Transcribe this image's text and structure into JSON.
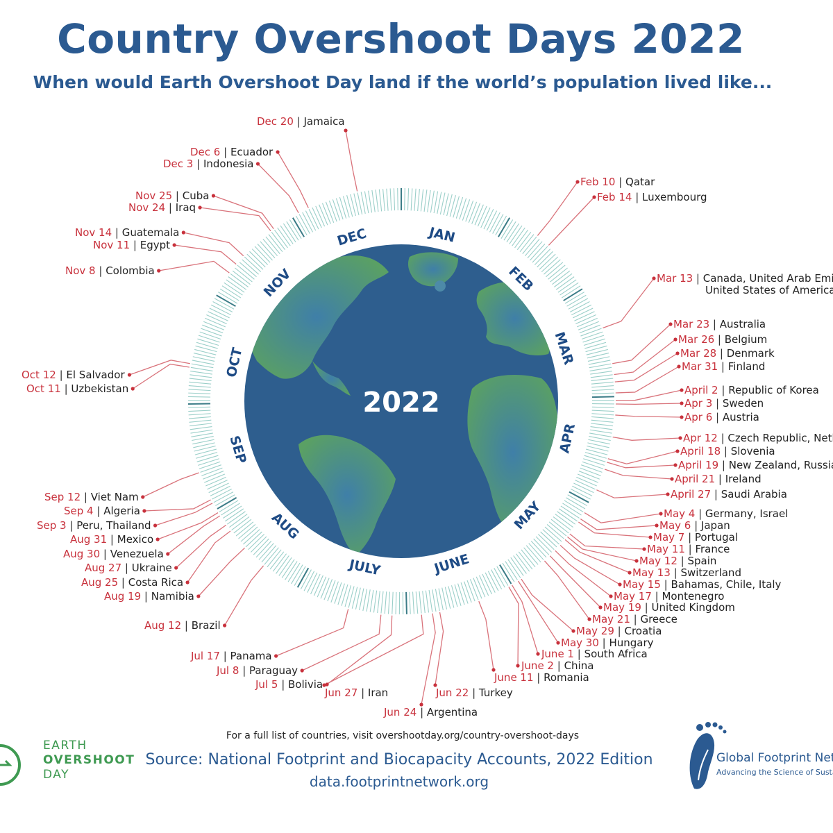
{
  "header": {
    "title": "Country Overshoot Days 2022",
    "subtitle": "When would Earth Overshoot Day land if the world’s population lived like..."
  },
  "globe": {
    "center_label": "2022",
    "ocean_color": "#2e5e8e",
    "land_color": "#5aa064",
    "ring_color": "#9bcfc9"
  },
  "months": [
    "JAN",
    "FEB",
    "MAR",
    "APR",
    "MAY",
    "JUNE",
    "JULY",
    "AUG",
    "SEP",
    "OCT",
    "NOV",
    "DEC"
  ],
  "colors": {
    "date": "#c8313c",
    "title": "#2b5a91",
    "leader": "#d9737b"
  },
  "countries": [
    {
      "date": "Feb 10",
      "name": "Qatar",
      "doy": 41
    },
    {
      "date": "Feb 14",
      "name": "Luxembourg",
      "doy": 45
    },
    {
      "date": "Mar 13",
      "name": "Canada, United Arab Emirates,",
      "name2": "United States of America",
      "doy": 72
    },
    {
      "date": "Mar 23",
      "name": "Australia",
      "doy": 82
    },
    {
      "date": "Mar 26",
      "name": "Belgium",
      "doy": 85
    },
    {
      "date": "Mar 28",
      "name": "Denmark",
      "doy": 87
    },
    {
      "date": "Mar 31",
      "name": "Finland",
      "doy": 90
    },
    {
      "date": "April 2",
      "name": "Republic of Korea",
      "doy": 92
    },
    {
      "date": "Apr 3",
      "name": "Sweden",
      "doy": 93
    },
    {
      "date": "Apr 6",
      "name": "Austria",
      "doy": 96
    },
    {
      "date": "Apr 12",
      "name": "Czech Republic, Netherlands",
      "doy": 102
    },
    {
      "date": "April 18",
      "name": "Slovenia",
      "doy": 108
    },
    {
      "date": "April 19",
      "name": "New Zealand, Russia",
      "doy": 109
    },
    {
      "date": "April 21",
      "name": "Ireland",
      "doy": 111
    },
    {
      "date": "April 27",
      "name": "Saudi Arabia",
      "doy": 117
    },
    {
      "date": "May 4",
      "name": "Germany, Israel",
      "doy": 124
    },
    {
      "date": "May 6",
      "name": "Japan",
      "doy": 126
    },
    {
      "date": "May 7",
      "name": "Portugal",
      "doy": 127
    },
    {
      "date": "May 11",
      "name": "France",
      "doy": 131
    },
    {
      "date": "May 12",
      "name": "Spain",
      "doy": 132
    },
    {
      "date": "May 13",
      "name": "Switzerland",
      "doy": 133
    },
    {
      "date": "May 15",
      "name": "Bahamas, Chile, Italy",
      "doy": 135
    },
    {
      "date": "May 17",
      "name": "Montenegro",
      "doy": 137
    },
    {
      "date": "May 19",
      "name": "United Kingdom",
      "doy": 139
    },
    {
      "date": "May 21",
      "name": "Greece",
      "doy": 141
    },
    {
      "date": "May 29",
      "name": "Croatia",
      "doy": 149
    },
    {
      "date": "May 30",
      "name": "Hungary",
      "doy": 150
    },
    {
      "date": "June 1",
      "name": "South Africa",
      "doy": 152
    },
    {
      "date": "June 2",
      "name": "China",
      "doy": 153
    },
    {
      "date": "June 11",
      "name": "Romania",
      "doy": 162
    },
    {
      "date": "Jun 22",
      "name": "Turkey",
      "doy": 173
    },
    {
      "date": "Jun 24",
      "name": "Argentina",
      "doy": 175
    },
    {
      "date": "Jun 27",
      "name": "Iran",
      "doy": 178
    },
    {
      "date": "Jul 5",
      "name": "Bolivia",
      "doy": 186
    },
    {
      "date": "Jul 8",
      "name": "Paraguay",
      "doy": 189
    },
    {
      "date": "Jul 17",
      "name": "Panama",
      "doy": 198
    },
    {
      "date": "Aug 12",
      "name": "Brazil",
      "doy": 224
    },
    {
      "date": "Aug 19",
      "name": "Namibia",
      "doy": 231
    },
    {
      "date": "Aug 25",
      "name": "Costa Rica",
      "doy": 237
    },
    {
      "date": "Aug 27",
      "name": "Ukraine",
      "doy": 239
    },
    {
      "date": "Aug 30",
      "name": "Venezuela",
      "doy": 242
    },
    {
      "date": "Aug 31",
      "name": "Mexico",
      "doy": 243
    },
    {
      "date": "Sep 3",
      "name": "Peru, Thailand",
      "doy": 246
    },
    {
      "date": "Sep 4",
      "name": "Algeria",
      "doy": 247
    },
    {
      "date": "Sep 12",
      "name": "Viet Nam",
      "doy": 255
    },
    {
      "date": "Oct 11",
      "name": "Uzbekistan",
      "doy": 284
    },
    {
      "date": "Oct 12",
      "name": "El Salvador",
      "doy": 285
    },
    {
      "date": "Nov 8",
      "name": "Colombia",
      "doy": 312
    },
    {
      "date": "Nov 11",
      "name": "Egypt",
      "doy": 315
    },
    {
      "date": "Nov 14",
      "name": "Guatemala",
      "doy": 318
    },
    {
      "date": "Nov 24",
      "name": "Iraq",
      "doy": 328
    },
    {
      "date": "Nov 25",
      "name": "Cuba",
      "doy": 329
    },
    {
      "date": "Dec 3",
      "name": "Indonesia",
      "doy": 337
    },
    {
      "date": "Dec 6",
      "name": "Ecuador",
      "doy": 340
    },
    {
      "date": "Dec 20",
      "name": "Jamaica",
      "doy": 354
    }
  ],
  "footer": {
    "note": "For a full list of countries, visit overshootday.org/country-overshoot-days",
    "source": "Source: National Footprint and Biocapacity Accounts, 2022 Edition",
    "url": "data.footprintnetwork.org",
    "eod_logo": [
      "EARTH",
      "OVERSHOOT",
      "DAY"
    ],
    "gfn_name": "Global Footprint Network",
    "gfn_tagline": "Advancing the Science of Sustainability"
  }
}
